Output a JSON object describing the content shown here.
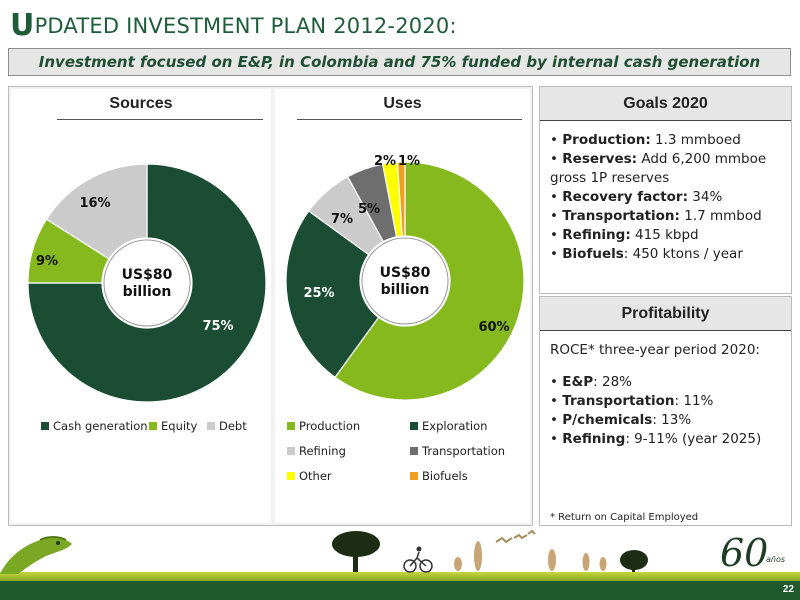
{
  "title": {
    "first_letter": "U",
    "rest": "PDATED INVESTMENT PLAN 2012-2020:"
  },
  "subtitle": "Investment  focused on E&P, in Colombia and 75% funded by internal cash generation",
  "colors": {
    "dark_green": "#1a4d33",
    "light_green": "#86b91e",
    "light_gray": "#cbcbcb",
    "dark_gray": "#6e6e6e",
    "yellow": "#ffff00",
    "orange": "#f0a020",
    "title_green": "#1f5c3a"
  },
  "chart_data": [
    {
      "type": "pie",
      "title": "Sources",
      "center_label": [
        "US$80",
        "billion"
      ],
      "categories": [
        "Cash generation",
        "Equity",
        "Debt"
      ],
      "values": [
        75,
        9,
        16
      ],
      "labels": [
        "75%",
        "9%",
        "16%"
      ],
      "legend_position": "bottom"
    },
    {
      "type": "pie",
      "title": "Uses",
      "center_label": [
        "US$80",
        "billion"
      ],
      "categories": [
        "Production",
        "Exploration",
        "Refining",
        "Transportation",
        "Other",
        "Biofuels"
      ],
      "values": [
        60,
        25,
        7,
        5,
        2,
        1
      ],
      "labels": [
        "60%",
        "25%",
        "7%",
        "5%",
        "2%",
        "1%"
      ],
      "legend_position": "bottom"
    }
  ],
  "goals": {
    "heading": "Goals 2020",
    "items": [
      {
        "label": "Production:",
        "text": " 1.3 mmboed"
      },
      {
        "label": "Reserves:",
        "text": " Add 6,200 mmboe gross 1P reserves"
      },
      {
        "label": "Recovery factor:",
        "text": " 34%"
      },
      {
        "label": "Transportation:",
        "text": " 1.7 mmbod"
      },
      {
        "label": "Refining:",
        "text": " 415 kbpd"
      },
      {
        "label": "Biofuels",
        "text": ": 450 ktons / year"
      }
    ]
  },
  "profitability": {
    "heading": "Profitability",
    "intro": "ROCE* three-year period 2020:",
    "items": [
      {
        "label": "E&P",
        "text": ": 28%"
      },
      {
        "label": "Transportation",
        "text": ": 11%"
      },
      {
        "label": "P/chemicals",
        "text": ": 13%"
      },
      {
        "label": "Refining",
        "text": ": 9-11% (year 2025)"
      }
    ],
    "footnote": "* Return on Capital Employed"
  },
  "logo": {
    "numeral": "60",
    "suffix": "años"
  },
  "page_number": "22"
}
